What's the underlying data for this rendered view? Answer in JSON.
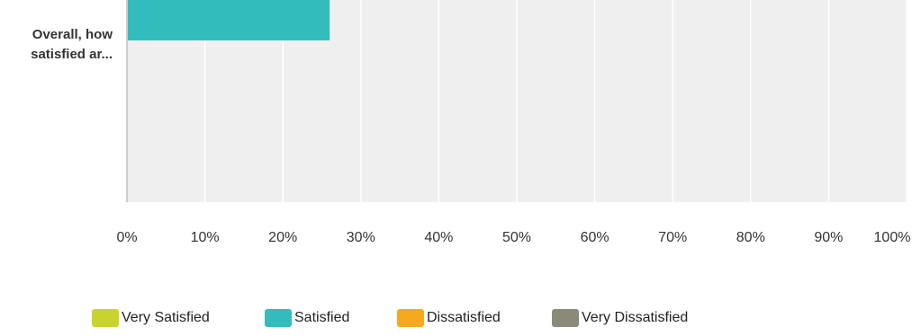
{
  "chart_data": {
    "type": "bar",
    "orientation": "horizontal",
    "stacked": true,
    "categories": [
      "Overall, how satisfied ar..."
    ],
    "category_label_lines": [
      "Overall, how",
      "satisfied ar..."
    ],
    "series": [
      {
        "name": "Very Satisfied",
        "values": [
          0
        ],
        "color": "#c9d42a"
      },
      {
        "name": "Satisfied",
        "values": [
          26
        ],
        "color": "#33bcbc"
      },
      {
        "name": "Dissatisfied",
        "values": [
          0
        ],
        "color": "#f5aa1d"
      },
      {
        "name": "Very Dissatisfied",
        "values": [
          0
        ],
        "color": "#8a8a78"
      }
    ],
    "xlim": [
      0,
      100
    ],
    "x_ticks": [
      "0%",
      "10%",
      "20%",
      "30%",
      "40%",
      "50%",
      "60%",
      "70%",
      "80%",
      "90%",
      "100%"
    ],
    "grid": true,
    "legend_position": "bottom",
    "background_color": "#efefef",
    "grid_color": "#ffffff"
  }
}
